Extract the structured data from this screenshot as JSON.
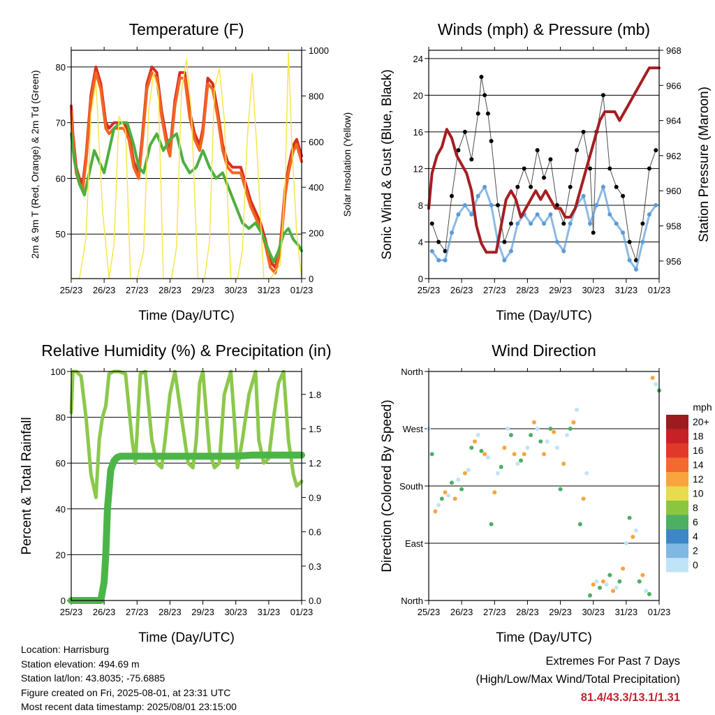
{
  "x_ticks": [
    "25/23",
    "26/23",
    "27/23",
    "28/23",
    "29/23",
    "30/23",
    "31/23",
    "01/23"
  ],
  "chart_data": [
    {
      "type": "line",
      "title": "Temperature (F)",
      "xlabel": "Time (Day/UTC)",
      "ylabel": "2m & 9m T (Red, Orange) & 2m Td (Green)",
      "ylabel_right": "Solar Insolation (Yellow)",
      "ylim": [
        42,
        83
      ],
      "ylim_right": [
        0,
        1000
      ],
      "yticks": [
        50,
        60,
        70,
        80
      ],
      "yticks_right": [
        0,
        200,
        400,
        600,
        800,
        1000
      ],
      "grid": true,
      "series": [
        {
          "color": "#d7301f",
          "x": [
            0,
            0.05,
            0.15,
            0.25,
            0.35,
            0.45,
            0.6,
            0.75,
            0.9,
            1.05,
            1.15,
            1.3,
            1.45,
            1.6,
            1.75,
            1.9,
            2.05,
            2.15,
            2.3,
            2.45,
            2.6,
            2.75,
            2.9,
            3.0,
            3.15,
            3.3,
            3.45,
            3.6,
            3.75,
            3.9,
            4.0,
            4.15,
            4.3,
            4.45,
            4.6,
            4.75,
            4.9,
            5.0,
            5.15,
            5.3,
            5.45,
            5.6,
            5.75,
            5.9,
            6.05,
            6.2,
            6.35,
            6.5,
            6.6,
            6.75,
            6.85,
            6.95,
            7.0
          ],
          "y": [
            73,
            68,
            62,
            60,
            59,
            64,
            75,
            80,
            77,
            70,
            69,
            70,
            70,
            70,
            68,
            63,
            61,
            67,
            77,
            80,
            79,
            72,
            67,
            65,
            74,
            79,
            79,
            72,
            68,
            66,
            69,
            78,
            77,
            72,
            66,
            63,
            62,
            62,
            62,
            59,
            56,
            54,
            52,
            49,
            45,
            44,
            48,
            58,
            62,
            66,
            67,
            65,
            64
          ]
        },
        {
          "color": "#f26522",
          "x": [
            0,
            0.05,
            0.15,
            0.25,
            0.35,
            0.45,
            0.6,
            0.75,
            0.9,
            1.05,
            1.15,
            1.3,
            1.45,
            1.6,
            1.75,
            1.9,
            2.05,
            2.15,
            2.3,
            2.45,
            2.6,
            2.75,
            2.9,
            3.0,
            3.15,
            3.3,
            3.45,
            3.6,
            3.75,
            3.9,
            4.0,
            4.15,
            4.3,
            4.45,
            4.6,
            4.75,
            4.9,
            5.0,
            5.15,
            5.3,
            5.45,
            5.6,
            5.75,
            5.9,
            6.05,
            6.2,
            6.35,
            6.5,
            6.6,
            6.75,
            6.85,
            6.95,
            7.0
          ],
          "y": [
            72,
            67,
            61,
            59,
            58,
            63,
            74,
            79,
            76,
            69,
            68,
            69,
            69,
            69,
            67,
            62,
            60,
            66,
            76,
            79,
            78,
            71,
            66,
            64,
            73,
            78,
            78,
            71,
            67,
            65,
            68,
            77,
            76,
            71,
            65,
            62,
            61,
            61,
            61,
            58,
            55,
            53,
            51,
            48,
            44,
            43,
            47,
            57,
            61,
            65,
            66,
            64,
            63
          ]
        },
        {
          "color": "#4daf3f",
          "x": [
            0,
            0.1,
            0.25,
            0.4,
            0.55,
            0.7,
            0.85,
            1.0,
            1.15,
            1.3,
            1.5,
            1.7,
            1.9,
            2.05,
            2.2,
            2.4,
            2.6,
            2.8,
            3.0,
            3.2,
            3.4,
            3.6,
            3.8,
            4.0,
            4.2,
            4.4,
            4.6,
            4.8,
            5.0,
            5.2,
            5.4,
            5.6,
            5.8,
            6.0,
            6.15,
            6.3,
            6.45,
            6.6,
            6.75,
            6.9,
            7.0
          ],
          "y": [
            68,
            63,
            59,
            57,
            61,
            65,
            63,
            61,
            65,
            69,
            70,
            70,
            66,
            62,
            61,
            66,
            68,
            65,
            67,
            68,
            63,
            61,
            62,
            65,
            62,
            60,
            61,
            58,
            55,
            52,
            51,
            52,
            50,
            47,
            45,
            47,
            50,
            51,
            49,
            48,
            47
          ]
        },
        {
          "axis": "right",
          "color": "#f7e64a",
          "x": [
            0,
            0.25,
            0.45,
            0.6,
            0.75,
            0.95,
            1.15,
            1.3,
            1.45,
            1.65,
            1.8,
            2.0,
            2.2,
            2.35,
            2.5,
            2.65,
            2.8,
            3.05,
            3.2,
            3.35,
            3.5,
            3.65,
            3.85,
            4.05,
            4.2,
            4.35,
            4.5,
            4.65,
            4.85,
            5.05,
            5.2,
            5.35,
            5.5,
            5.65,
            5.85,
            6.05,
            6.2,
            6.35,
            6.5,
            6.6,
            6.7,
            6.85,
            7.0
          ],
          "y": [
            0,
            0,
            180,
            720,
            860,
            300,
            0,
            150,
            710,
            650,
            0,
            0,
            120,
            730,
            900,
            820,
            0,
            0,
            140,
            820,
            960,
            730,
            0,
            0,
            160,
            830,
            920,
            700,
            0,
            0,
            120,
            620,
            900,
            540,
            0,
            0,
            30,
            60,
            420,
            990,
            600,
            200,
            0
          ]
        }
      ]
    },
    {
      "type": "scatter",
      "title": "Winds (mph) & Pressure (mb)",
      "xlabel": "Time (Day/UTC)",
      "ylabel": "Sonic Wind & Gust (Blue, Black)",
      "ylabel_right": "Station Pressure (Maroon)",
      "ylim": [
        0,
        24.9
      ],
      "ylim_right": [
        955,
        968
      ],
      "yticks": [
        0,
        4,
        8,
        12,
        16,
        20,
        24
      ],
      "yticks_right": [
        956,
        958,
        960,
        962,
        964,
        966,
        968
      ],
      "grid": true,
      "series": [
        {
          "color": "#000000",
          "x": [
            0.1,
            0.3,
            0.5,
            0.7,
            0.9,
            1.1,
            1.3,
            1.5,
            1.6,
            1.7,
            1.8,
            1.9,
            2.1,
            2.3,
            2.5,
            2.7,
            2.9,
            3.1,
            3.3,
            3.5,
            3.7,
            3.9,
            4.1,
            4.3,
            4.5,
            4.7,
            4.9,
            5.0,
            5.1,
            5.3,
            5.5,
            5.7,
            5.9,
            6.1,
            6.3,
            6.5,
            6.7,
            6.9
          ],
          "y": [
            6,
            4,
            3,
            9,
            14,
            16,
            13,
            18,
            22,
            20,
            18,
            15,
            8,
            4,
            6,
            10,
            12,
            10,
            14,
            11,
            13,
            8,
            6,
            10,
            14,
            16,
            12,
            5,
            16,
            20,
            12,
            10,
            9,
            4,
            2,
            6,
            12,
            14
          ]
        },
        {
          "color": "#5b9bd5",
          "x": [
            0.1,
            0.3,
            0.5,
            0.7,
            0.9,
            1.1,
            1.3,
            1.5,
            1.7,
            1.9,
            2.1,
            2.3,
            2.5,
            2.7,
            2.9,
            3.1,
            3.3,
            3.5,
            3.7,
            3.9,
            4.1,
            4.3,
            4.5,
            4.7,
            4.9,
            5.1,
            5.3,
            5.5,
            5.7,
            5.9,
            6.1,
            6.3,
            6.5,
            6.7,
            6.9
          ],
          "y": [
            3,
            2,
            2,
            5,
            7,
            8,
            7,
            9,
            10,
            8,
            4,
            2,
            3,
            6,
            7,
            6,
            7,
            6,
            7,
            4,
            3,
            6,
            8,
            9,
            6,
            8,
            10,
            7,
            6,
            5,
            2,
            1,
            4,
            7,
            8
          ]
        },
        {
          "axis": "right",
          "color": "#a51e22",
          "x": [
            0,
            0.1,
            0.25,
            0.4,
            0.55,
            0.7,
            0.85,
            1.0,
            1.15,
            1.3,
            1.45,
            1.6,
            1.75,
            1.9,
            2.05,
            2.2,
            2.35,
            2.5,
            2.65,
            2.8,
            2.95,
            3.1,
            3.25,
            3.4,
            3.55,
            3.7,
            3.85,
            4.0,
            4.15,
            4.3,
            4.45,
            4.6,
            4.75,
            4.9,
            5.05,
            5.2,
            5.35,
            5.5,
            5.65,
            5.8,
            5.95,
            6.1,
            6.25,
            6.4,
            6.55,
            6.7,
            6.85,
            7.0
          ],
          "y": [
            959,
            961,
            962,
            962.5,
            963.5,
            963,
            962,
            961.5,
            961,
            960,
            958,
            957,
            956.5,
            956.5,
            956.5,
            958,
            959.5,
            960,
            959.5,
            958.5,
            959,
            959.5,
            960,
            959.5,
            960,
            959.5,
            959,
            959,
            958.5,
            958.5,
            959,
            960,
            961,
            962,
            963,
            964,
            964.5,
            964.5,
            964.5,
            964,
            964.5,
            965,
            965.5,
            966,
            966.5,
            967,
            967,
            967
          ]
        }
      ]
    },
    {
      "type": "line",
      "title": "Relative Humidity (%) & Precipitation (in)",
      "xlabel": "Time (Day/UTC)",
      "ylabel": "Percent & Total Rainfall",
      "ylim": [
        0,
        100
      ],
      "ylim_right": [
        0,
        2.0
      ],
      "yticks": [
        0,
        20,
        40,
        60,
        80,
        100
      ],
      "yticks_right": [
        "0.0",
        "0.3",
        "0.6",
        "0.9",
        "1.2",
        "1.5",
        "1.8"
      ],
      "grid": true,
      "series": [
        {
          "color": "#8cc84b",
          "x": [
            0,
            0.05,
            0.15,
            0.3,
            0.45,
            0.6,
            0.75,
            0.85,
            0.95,
            1.05,
            1.15,
            1.3,
            1.45,
            1.65,
            1.85,
            1.95,
            2.1,
            2.25,
            2.45,
            2.6,
            2.75,
            2.85,
            3.0,
            3.15,
            3.35,
            3.55,
            3.7,
            3.8,
            3.9,
            4.0,
            4.2,
            4.35,
            4.5,
            4.65,
            4.85,
            4.95,
            5.05,
            5.2,
            5.4,
            5.6,
            5.7,
            5.85,
            6.0,
            6.15,
            6.3,
            6.45,
            6.6,
            6.75,
            6.85,
            7.0
          ],
          "y": [
            82,
            100,
            100,
            98,
            80,
            55,
            45,
            70,
            80,
            85,
            99,
            100,
            100,
            99,
            70,
            60,
            99,
            100,
            70,
            60,
            58,
            70,
            90,
            100,
            80,
            60,
            58,
            70,
            95,
            100,
            65,
            58,
            60,
            90,
            100,
            80,
            58,
            70,
            90,
            100,
            70,
            60,
            62,
            80,
            95,
            100,
            70,
            55,
            50,
            52
          ]
        },
        {
          "color": "#4cb548",
          "x": [
            0,
            0.9,
            1.0,
            1.05,
            1.1,
            1.2,
            1.3,
            1.4,
            1.5,
            1.8,
            2.5,
            3.5,
            4.5,
            5.0,
            5.5,
            6.0,
            6.5,
            7.0
          ],
          "y": [
            0,
            0,
            8,
            20,
            40,
            57,
            61,
            62.5,
            63,
            63,
            63,
            63,
            63,
            63,
            63.5,
            63.5,
            63.5,
            63.5
          ]
        }
      ]
    },
    {
      "type": "scatter",
      "title": "Wind Direction",
      "xlabel": "Time (Day/UTC)",
      "ylabel": "Direction (Colored By Speed)",
      "ylim": [
        0,
        360
      ],
      "yticks": [
        "North",
        "East",
        "South",
        "West",
        "North"
      ],
      "grid": true,
      "legend": {
        "title": "mph",
        "placement": "right",
        "labels": [
          "20+",
          "18",
          "16",
          "14",
          "12",
          "10",
          "8",
          "6",
          "4",
          "2",
          "0"
        ],
        "colors": [
          "#9b1b1e",
          "#c52127",
          "#e0392b",
          "#f26a2e",
          "#f9a43c",
          "#e6dc4e",
          "#8cc63f",
          "#4caf64",
          "#3d87c7",
          "#7fb8e3",
          "#bfe4f7"
        ]
      },
      "series": [
        {
          "x": [
            0.0,
            0.1,
            0.2,
            0.3,
            0.4,
            0.5,
            0.6,
            0.7,
            0.8,
            0.9,
            1.0,
            1.1,
            1.2,
            1.3,
            1.4,
            1.5,
            1.6,
            1.7,
            1.8,
            1.9,
            2.0,
            2.1,
            2.2,
            2.3,
            2.4,
            2.5,
            2.6,
            2.7,
            2.8,
            2.9,
            3.0,
            3.1,
            3.2,
            3.3,
            3.4,
            3.5,
            3.6,
            3.7,
            3.8,
            3.9,
            4.0,
            4.1,
            4.2,
            4.3,
            4.4,
            4.5,
            4.6,
            4.7,
            4.8,
            4.9,
            5.0,
            5.1,
            5.2,
            5.3,
            5.4,
            5.5,
            5.6,
            5.7,
            5.8,
            5.9,
            6.0,
            6.1,
            6.2,
            6.3,
            6.4,
            6.5,
            6.6,
            6.7,
            6.8,
            6.9,
            7.0
          ],
          "y": [
            270,
            230,
            140,
            150,
            160,
            170,
            165,
            185,
            160,
            190,
            175,
            200,
            205,
            240,
            250,
            260,
            235,
            230,
            225,
            120,
            170,
            200,
            210,
            240,
            270,
            260,
            230,
            215,
            220,
            230,
            240,
            260,
            280,
            270,
            250,
            230,
            250,
            270,
            265,
            240,
            175,
            215,
            260,
            270,
            280,
            300,
            120,
            160,
            200,
            8,
            25,
            30,
            20,
            30,
            25,
            40,
            15,
            20,
            30,
            50,
            90,
            130,
            100,
            110,
            30,
            40,
            15,
            10,
            350,
            340,
            330
          ]
        }
      ]
    }
  ],
  "info": {
    "location": "Location: Harrisburg",
    "elevation": "Station elevation: 494.69 m",
    "latlon": "Station lat/lon: 43.8035; -75.6885",
    "created": "Figure created on Fri, 2025-08-01, at 23:31 UTC",
    "timestamp": "Most recent data timestamp: 2025/08/01 23:15:00"
  },
  "extremes": {
    "line1": "Extremes For Past 7 Days",
    "line2": "(High/Low/Max Wind/Total Precipitation)",
    "values": "81.4/43.3/13.1/1.31"
  }
}
